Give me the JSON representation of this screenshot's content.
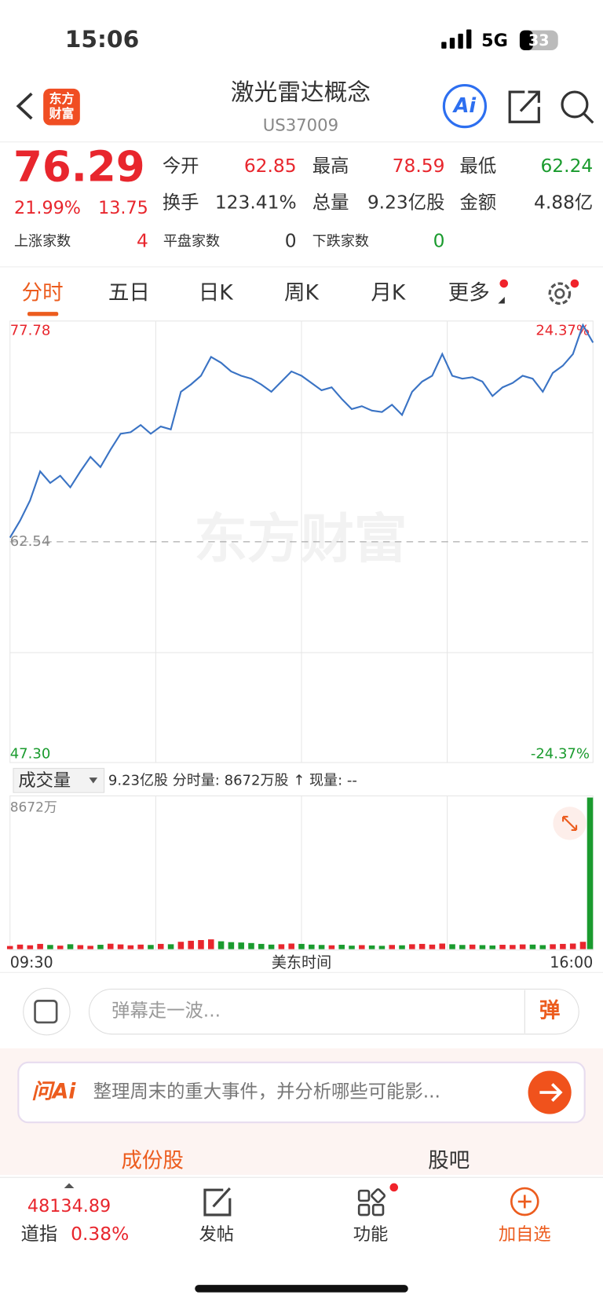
{
  "status": {
    "time": "15:06",
    "network": "5G",
    "battery": "33"
  },
  "header": {
    "logo": [
      "东方",
      "财富"
    ],
    "title": "激光雷达概念",
    "code": "US37009",
    "ai": "Ai"
  },
  "quote": {
    "price": "76.29",
    "pct": "21.99%",
    "change": "13.75",
    "rows": [
      [
        {
          "label": "今开",
          "value": "62.85"
        },
        {
          "label": "最高",
          "value": "78.59"
        },
        {
          "label": "最低",
          "value": "62.24"
        }
      ],
      [
        {
          "label": "换手",
          "value": "123.41%"
        },
        {
          "label": "总量",
          "value": "9.23亿股"
        },
        {
          "label": "金额",
          "value": "4.88亿"
        }
      ],
      [
        {
          "label": "上涨家数",
          "value": "4"
        },
        {
          "label": "平盘家数",
          "value": "0"
        },
        {
          "label": "下跌家数",
          "value": "0"
        }
      ]
    ]
  },
  "tabs": [
    "分时",
    "五日",
    "日K",
    "周K",
    "月K",
    "更多"
  ],
  "chart_data": {
    "type": "line",
    "color": "#3a73c4",
    "watermark": "东方财富",
    "ylim": [
      47.3,
      77.78
    ],
    "yticks": [
      {
        "value": 47.3,
        "label": "47.30"
      },
      62.54,
      77.78
    ],
    "y2lim": [
      -24.37,
      24.37
    ],
    "y2ticks": [
      {
        "value": -24.37,
        "label": "-24.37%"
      },
      {
        "value": 24.37,
        "label": "24.37%"
      }
    ],
    "values": [
      62.83,
      64.0,
      65.4,
      67.4,
      66.6,
      67.1,
      66.3,
      67.4,
      68.4,
      67.7,
      68.9,
      70.0,
      70.1,
      70.6,
      70.0,
      70.5,
      70.3,
      72.9,
      73.4,
      74.0,
      75.3,
      74.9,
      74.3,
      74.0,
      73.8,
      73.4,
      72.9,
      73.6,
      74.3,
      74.0,
      73.5,
      73.0,
      73.2,
      72.4,
      71.7,
      71.9,
      71.6,
      71.5,
      72.0,
      71.3,
      72.9,
      73.6,
      74.0,
      75.5,
      74.0,
      73.8,
      73.9,
      73.6,
      72.6,
      73.2,
      73.5,
      74.0,
      73.8,
      72.9,
      74.2,
      74.7,
      75.5,
      77.5,
      76.29
    ],
    "volume": {
      "label": "成交量",
      "info": "9.23亿股 分时量: 8672万股 ↑ 现量: --",
      "max_label": "8672万",
      "ylim": [
        0,
        8672
      ],
      "values": [
        180,
        260,
        220,
        300,
        240,
        200,
        280,
        230,
        190,
        250,
        310,
        270,
        220,
        260,
        240,
        300,
        280,
        420,
        480,
        520,
        560,
        450,
        400,
        380,
        350,
        300,
        260,
        280,
        320,
        300,
        260,
        240,
        220,
        250,
        200,
        230,
        210,
        190,
        240,
        220,
        280,
        300,
        260,
        320,
        280,
        240,
        260,
        230,
        210,
        250,
        240,
        270,
        260,
        230,
        280,
        300,
        320,
        420,
        8672
      ]
    },
    "xlabels": [
      "09:30",
      "美东时间",
      "16:00"
    ]
  },
  "comment": {
    "placeholder": "弹幕走一波...",
    "button": "弹"
  },
  "ai_bar": {
    "brand": "问Ai",
    "prompt": "整理周末的重大事件，并分析哪些可能影..."
  },
  "subtabs": [
    "成份股",
    "股吧"
  ],
  "bottom": {
    "index_value": "48134.89",
    "index_name": "道指",
    "index_pct": "0.38%",
    "items": [
      "发帖",
      "功能",
      "加自选"
    ]
  }
}
